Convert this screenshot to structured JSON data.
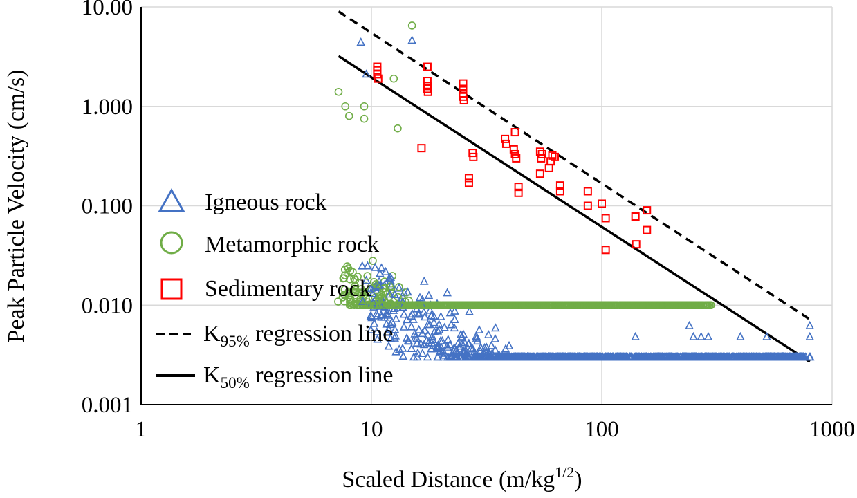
{
  "chart_data": {
    "type": "scatter",
    "title": "",
    "xlabel": "Scaled Distance (m/kg",
    "xlabel_sup": "1/2",
    "xlabel_end": ")",
    "ylabel": "Peak Particle Velocity (cm/s)",
    "xscale": "log",
    "yscale": "log",
    "xlim": [
      1,
      1000
    ],
    "ylim": [
      0.001,
      10
    ],
    "xticks": [
      "1",
      "10",
      "100",
      "1000"
    ],
    "yticks": [
      "0.001",
      "0.010",
      "0.100",
      "1.000",
      "10.00"
    ],
    "grid": true,
    "legend_position": "left-center",
    "legend": {
      "igneous": "Igneous rock",
      "metamorphic": "Metamorphic rock",
      "sedimentary": "Sedimentary rock",
      "k95_base": "K",
      "k95_sub": "95%",
      "k95_rest": " regression line",
      "k50_base": "K",
      "k50_sub": "50%",
      "k50_rest": " regression line"
    },
    "colors": {
      "igneous": "#4472c4",
      "metamorphic": "#70ad47",
      "sedimentary": "#ff0000",
      "lines": "#000000",
      "grid": "#d9d9d9"
    },
    "regression_lines": [
      {
        "name": "K95% regression line",
        "style": "dashed",
        "points": [
          [
            7.2,
            9.0
          ],
          [
            800,
            0.0072
          ]
        ]
      },
      {
        "name": "K50% regression line",
        "style": "solid",
        "points": [
          [
            7.2,
            3.2
          ],
          [
            800,
            0.0027
          ]
        ]
      }
    ],
    "series": [
      {
        "name": "Igneous rock",
        "marker": "triangle",
        "generated": {
          "count": 1000,
          "x_min": 9,
          "x_max": 820,
          "center_k": 0.4,
          "slope": -1.5,
          "spread_log10": 0.34,
          "y_min": 0.003,
          "y_max": 4.6
        },
        "points": [
          [
            800,
            0.0062
          ],
          [
            800,
            0.0048
          ],
          [
            520,
            0.0048
          ],
          [
            400,
            0.0048
          ],
          [
            330,
            0.003
          ],
          [
            290,
            0.0048
          ],
          [
            270,
            0.0048
          ],
          [
            250,
            0.0048
          ],
          [
            240,
            0.0062
          ],
          [
            140,
            0.0048
          ],
          [
            9,
            4.4
          ],
          [
            15,
            4.6
          ],
          [
            9.5,
            2.1
          ]
        ]
      },
      {
        "name": "Metamorphic rock",
        "marker": "circle",
        "generated": {
          "count": 1100,
          "x_min": 7,
          "x_max": 300,
          "center_k": 0.33,
          "slope": -1.5,
          "spread_log10": 0.3,
          "y_min": 0.01,
          "y_max": 3.0
        },
        "points": [
          [
            15,
            6.5
          ],
          [
            7.2,
            1.4
          ],
          [
            7.7,
            1.0
          ],
          [
            8,
            0.8
          ],
          [
            9.3,
            1.0
          ],
          [
            9.3,
            0.75
          ],
          [
            13,
            0.6
          ],
          [
            12.5,
            1.9
          ]
        ]
      },
      {
        "name": "Sedimentary rock",
        "marker": "square",
        "points": [
          [
            10.6,
            2.5
          ],
          [
            10.6,
            2.3
          ],
          [
            10.6,
            2.1
          ],
          [
            10.7,
            1.9
          ],
          [
            17.5,
            2.5
          ],
          [
            17.5,
            1.8
          ],
          [
            17.5,
            1.6
          ],
          [
            17.5,
            1.5
          ],
          [
            17.6,
            1.4
          ],
          [
            25,
            1.7
          ],
          [
            25,
            1.5
          ],
          [
            25,
            1.35
          ],
          [
            25,
            1.25
          ],
          [
            25.2,
            1.15
          ],
          [
            16.5,
            0.38
          ],
          [
            27.5,
            0.34
          ],
          [
            27.7,
            0.31
          ],
          [
            26.5,
            0.19
          ],
          [
            26.5,
            0.17
          ],
          [
            38,
            0.47
          ],
          [
            38.5,
            0.42
          ],
          [
            42,
            0.55
          ],
          [
            41.5,
            0.37
          ],
          [
            42,
            0.33
          ],
          [
            42.5,
            0.3
          ],
          [
            43.5,
            0.155
          ],
          [
            43.5,
            0.135
          ],
          [
            54,
            0.35
          ],
          [
            55,
            0.33
          ],
          [
            54.5,
            0.3
          ],
          [
            59,
            0.24
          ],
          [
            60,
            0.28
          ],
          [
            61,
            0.32
          ],
          [
            62.5,
            0.31
          ],
          [
            54,
            0.21
          ],
          [
            66,
            0.16
          ],
          [
            66,
            0.14
          ],
          [
            87,
            0.14
          ],
          [
            87,
            0.1
          ],
          [
            100,
            0.105
          ],
          [
            104,
            0.075
          ],
          [
            104,
            0.036
          ],
          [
            140,
            0.078
          ],
          [
            141,
            0.041
          ],
          [
            157,
            0.09
          ],
          [
            157,
            0.057
          ]
        ]
      }
    ]
  }
}
